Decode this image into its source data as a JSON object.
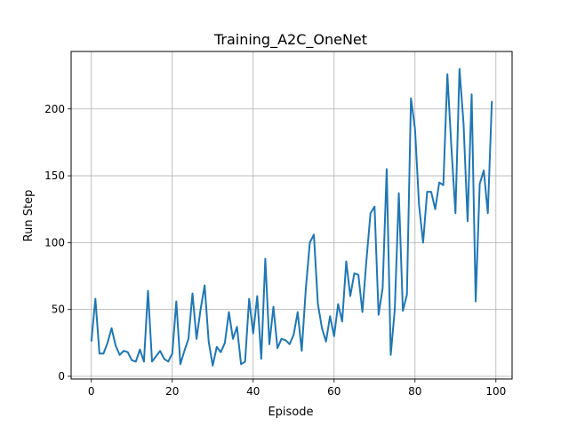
{
  "chart_data": {
    "type": "line",
    "title": "Training_A2C_OneNet",
    "xlabel": "Episode",
    "ylabel": "Run Step",
    "xlim": [
      -5,
      104
    ],
    "ylim": [
      -2,
      243
    ],
    "xticks": [
      0,
      20,
      40,
      60,
      80,
      100
    ],
    "yticks": [
      0,
      50,
      100,
      150,
      200
    ],
    "grid": true,
    "line_color": "#1f77b4",
    "series": [
      {
        "x": [
          0,
          1,
          2,
          3,
          4,
          5,
          6,
          7,
          8,
          9,
          10,
          11,
          12,
          13,
          14,
          15,
          16,
          17,
          18,
          19,
          20,
          21,
          22,
          23,
          24,
          25,
          26,
          27,
          28,
          29,
          30,
          31,
          32,
          33,
          34,
          35,
          36,
          37,
          38,
          39,
          40,
          41,
          42,
          43,
          44,
          45,
          46,
          47,
          48,
          49,
          50,
          51,
          52,
          53,
          54,
          55,
          56,
          57,
          58,
          59,
          60,
          61,
          62,
          63,
          64,
          65,
          66,
          67,
          68,
          69,
          70,
          71,
          72,
          73,
          74,
          75,
          76,
          77,
          78,
          79,
          80,
          81,
          82,
          83,
          84,
          85,
          86,
          87,
          88,
          89,
          90,
          91,
          92,
          93,
          94,
          95,
          96,
          97,
          98,
          99
        ],
        "y": [
          26,
          58,
          17,
          17,
          25,
          36,
          23,
          16,
          19,
          18,
          12,
          11,
          20,
          11,
          64,
          11,
          15,
          19,
          13,
          11,
          17,
          56,
          9,
          19,
          28,
          62,
          28,
          50,
          68,
          26,
          8,
          22,
          18,
          25,
          48,
          28,
          37,
          9,
          11,
          58,
          32,
          60,
          13,
          88,
          24,
          52,
          21,
          28,
          27,
          24,
          31,
          48,
          19,
          65,
          100,
          106,
          54,
          36,
          26,
          45,
          30,
          54,
          41,
          86,
          60,
          77,
          76,
          48,
          87,
          122,
          127,
          46,
          66,
          155,
          16,
          50,
          137,
          49,
          61,
          208,
          185,
          128,
          100,
          138,
          138,
          125,
          145,
          143,
          226,
          171,
          122,
          230,
          189,
          116,
          211,
          56,
          144,
          154,
          122,
          206
        ]
      }
    ]
  }
}
